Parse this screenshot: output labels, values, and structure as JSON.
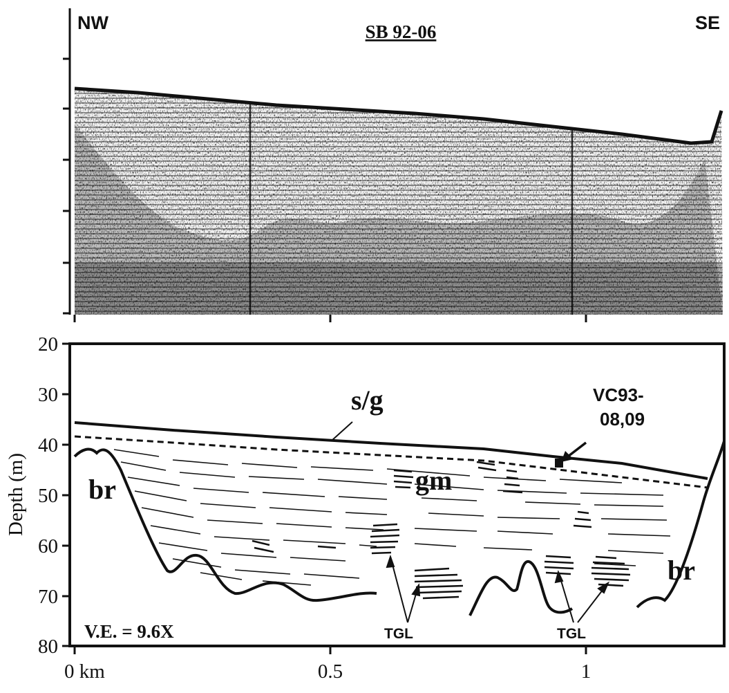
{
  "figure": {
    "seismic_panel": {
      "title": "SB 92-06",
      "left_direction": "NW",
      "right_direction": "SE"
    },
    "interpretation_panel": {
      "y_axis_label": "Depth (m)",
      "y_ticks": [
        "20",
        "30",
        "40",
        "50",
        "60",
        "70",
        "80"
      ],
      "x_ticks": [
        "0 km",
        "0.5",
        "1"
      ],
      "labels": {
        "surface_unit": "s/g",
        "core": "VC93-",
        "core_line2": "08,09",
        "bedrock_left": "br",
        "bedrock_right": "br",
        "glaciomarine": "gm",
        "tgl_left": "TGL",
        "tgl_right": "TGL",
        "vertical_exaggeration": "V.E. = 9.6X"
      }
    }
  },
  "colors": {
    "ink": "#111111",
    "paper": "#ffffff",
    "seismic_dark": "#1a1a1a"
  }
}
